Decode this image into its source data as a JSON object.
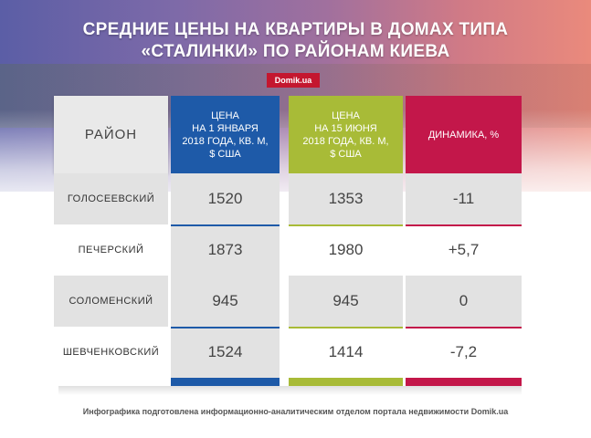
{
  "header": {
    "title_line1": "СРЕДНИЕ ЦЕНЫ НА КВАРТИРЫ В ДОМАХ ТИПА",
    "title_line2": "«СТАЛИНКИ» ПО РАЙОНАМ КИЕВА",
    "brand": "Domik.ua"
  },
  "colors": {
    "price_jan": "#1e5aa8",
    "price_jun": "#a8bb37",
    "dynamics": "#c3174a"
  },
  "chart_data": {
    "type": "table",
    "columns": [
      "РАЙОН",
      "ЦЕНА НА 1 ЯНВАРЯ 2018 ГОДА, КВ. М, $ США",
      "ЦЕНА НА 15 ИЮНЯ 2018 ГОДА, КВ. М, $ США",
      "ДИНАМИКА, %"
    ],
    "column_lines": {
      "district": "РАЙОН",
      "jan": [
        "ЦЕНА",
        "НА 1 ЯНВАРЯ",
        "2018 ГОДА, КВ. М,",
        "$ США"
      ],
      "jun": [
        "ЦЕНА",
        "НА 15 ИЮНЯ",
        "2018 ГОДА, КВ. М,",
        "$ США"
      ],
      "dyn": "ДИНАМИКА, %"
    },
    "rows": [
      {
        "district": "ГОЛОСЕЕВСКИЙ",
        "jan": 1520,
        "jun": 1353,
        "dynamics": "-11"
      },
      {
        "district": "ПЕЧЕРСКИЙ",
        "jan": 1873,
        "jun": 1980,
        "dynamics": "+5,7"
      },
      {
        "district": "СОЛОМЕНСКИЙ",
        "jan": 945,
        "jun": 945,
        "dynamics": "0"
      },
      {
        "district": "ШЕВЧЕНКОВСКИЙ",
        "jan": 1524,
        "jun": 1414,
        "dynamics": "-7,2"
      }
    ]
  },
  "footer": {
    "note": "Инфографика подготовлена информационно-аналитическим отделом портала недвижимости Domik.ua"
  }
}
